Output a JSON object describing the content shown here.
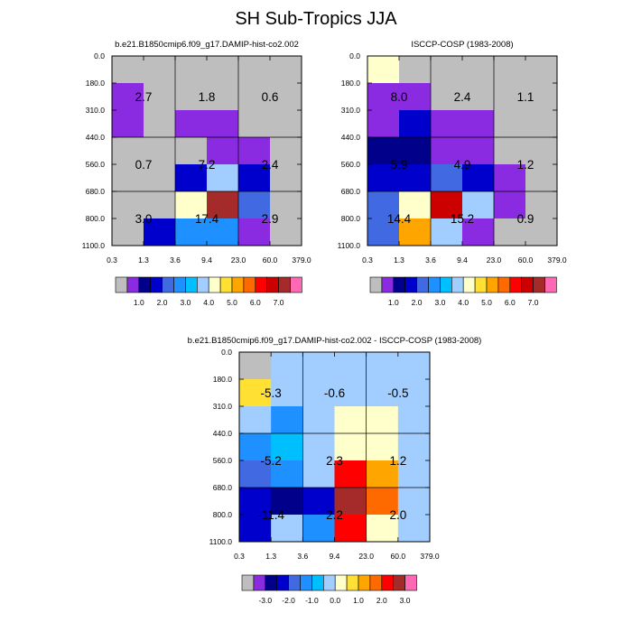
{
  "page_title": "SH Sub-Tropics JJA",
  "palette": {
    "abs": [
      "#bebebe",
      "#8a2be2",
      "#00008b",
      "#0000cd",
      "#4169e1",
      "#1e90ff",
      "#00bfff",
      "#a2cdff",
      "#ffffcc",
      "#ffe033",
      "#ffa500",
      "#ff6a00",
      "#ff0000",
      "#cd0000",
      "#a52a2a",
      "#ff69b4"
    ],
    "abs_ticks": [
      "1.0",
      "2.0",
      "3.0",
      "4.0",
      "5.0",
      "6.0",
      "7.0"
    ],
    "abs_tick_boxes": [
      1,
      3,
      5,
      7,
      9,
      11,
      13
    ],
    "diff": [
      "#bebebe",
      "#8a2be2",
      "#00008b",
      "#0000cd",
      "#4169e1",
      "#1e90ff",
      "#00bfff",
      "#a2cdff",
      "#ffffcc",
      "#ffe033",
      "#ffa500",
      "#ff6a00",
      "#ff0000",
      "#a52a2a",
      "#ff69b4"
    ],
    "diff_ticks": [
      "-3.0",
      "-2.0",
      "-1.0",
      "0.0",
      "1.0",
      "2.0",
      "3.0"
    ],
    "diff_tick_boxes": [
      1,
      3,
      5,
      7,
      9,
      11,
      13
    ]
  },
  "chart_data": [
    {
      "type": "heatmap",
      "title": "b.e21.B1850cmip6.f09_g17.DAMIP-hist-co2.002",
      "x_ticks": [
        "0.3",
        "1.3",
        "3.6",
        "9.4",
        "23.0",
        "60.0",
        "379.0"
      ],
      "y_ticks": [
        "0.0",
        "180.0",
        "310.0",
        "440.0",
        "560.0",
        "680.0",
        "800.0",
        "1100.0"
      ],
      "cells": [
        [
          0,
          0,
          0,
          0,
          0,
          0
        ],
        [
          1,
          0,
          0,
          0,
          0,
          0
        ],
        [
          1,
          0,
          1,
          1,
          0,
          0
        ],
        [
          0,
          0,
          0,
          1,
          1,
          0
        ],
        [
          0,
          0,
          3,
          7,
          3,
          0
        ],
        [
          0,
          0,
          8,
          14,
          4,
          0
        ],
        [
          0,
          3,
          5,
          5,
          1,
          0
        ]
      ],
      "annotations": [
        {
          "row": 1,
          "col": 0,
          "label": "2.7"
        },
        {
          "row": 1,
          "col": 2,
          "label": "1.8"
        },
        {
          "row": 1,
          "col": 4,
          "label": "0.6"
        },
        {
          "row": 4,
          "col": 0,
          "label": "0.7"
        },
        {
          "row": 4,
          "col": 2,
          "label": "7.2"
        },
        {
          "row": 4,
          "col": 4,
          "label": "2.4"
        },
        {
          "row": 6,
          "col": 0,
          "label": "3.0"
        },
        {
          "row": 6,
          "col": 2,
          "label": "17.4"
        },
        {
          "row": 6,
          "col": 4,
          "label": "2.9"
        }
      ]
    },
    {
      "type": "heatmap",
      "title": "ISCCP-COSP (1983-2008)",
      "x_ticks": [
        "0.3",
        "1.3",
        "3.6",
        "9.4",
        "23.0",
        "60.0",
        "379.0"
      ],
      "y_ticks": [
        "0.0",
        "180.0",
        "310.0",
        "440.0",
        "560.0",
        "680.0",
        "800.0",
        "1100.0"
      ],
      "cells": [
        [
          8,
          0,
          0,
          0,
          0,
          0
        ],
        [
          1,
          1,
          0,
          0,
          0,
          0
        ],
        [
          1,
          3,
          1,
          1,
          0,
          0
        ],
        [
          2,
          2,
          1,
          1,
          0,
          0
        ],
        [
          3,
          3,
          4,
          3,
          1,
          0
        ],
        [
          4,
          8,
          13,
          7,
          1,
          0
        ],
        [
          4,
          10,
          7,
          1,
          0,
          0
        ]
      ],
      "annotations": [
        {
          "row": 1,
          "col": 0,
          "label": "8.0"
        },
        {
          "row": 1,
          "col": 2,
          "label": "2.4"
        },
        {
          "row": 1,
          "col": 4,
          "label": "1.1"
        },
        {
          "row": 4,
          "col": 0,
          "label": "5.9"
        },
        {
          "row": 4,
          "col": 2,
          "label": "4.9"
        },
        {
          "row": 4,
          "col": 4,
          "label": "1.2"
        },
        {
          "row": 6,
          "col": 0,
          "label": "14.4"
        },
        {
          "row": 6,
          "col": 2,
          "label": "15.2"
        },
        {
          "row": 6,
          "col": 4,
          "label": "0.9"
        }
      ]
    },
    {
      "type": "heatmap",
      "title": "b.e21.B1850cmip6.f09_g17.DAMIP-hist-co2.002 - ISCCP-COSP (1983-2008)",
      "x_ticks": [
        "0.3",
        "1.3",
        "3.6",
        "9.4",
        "23.0",
        "60.0",
        "379.0"
      ],
      "y_ticks": [
        "0.0",
        "180.0",
        "310.0",
        "440.0",
        "560.0",
        "680.0",
        "800.0",
        "1100.0"
      ],
      "cells": [
        [
          0,
          7,
          7,
          7,
          7,
          7
        ],
        [
          9,
          7,
          7,
          7,
          7,
          7
        ],
        [
          7,
          5,
          7,
          8,
          8,
          7
        ],
        [
          5,
          6,
          7,
          8,
          8,
          7
        ],
        [
          4,
          5,
          7,
          12,
          10,
          7
        ],
        [
          3,
          2,
          3,
          13,
          11,
          7
        ],
        [
          3,
          7,
          5,
          12,
          8,
          7
        ]
      ],
      "annotations": [
        {
          "row": 1,
          "col": 0,
          "label": "-5.3"
        },
        {
          "row": 1,
          "col": 2,
          "label": "-0.6"
        },
        {
          "row": 1,
          "col": 4,
          "label": "-0.5"
        },
        {
          "row": 4,
          "col": 0,
          "label": "-5.2"
        },
        {
          "row": 4,
          "col": 2,
          "label": "2.3"
        },
        {
          "row": 4,
          "col": 4,
          "label": "1.2"
        },
        {
          "row": 6,
          "col": 0,
          "label": "-11.4"
        },
        {
          "row": 6,
          "col": 2,
          "label": "2.2"
        },
        {
          "row": 6,
          "col": 4,
          "label": "2.0"
        }
      ]
    }
  ]
}
